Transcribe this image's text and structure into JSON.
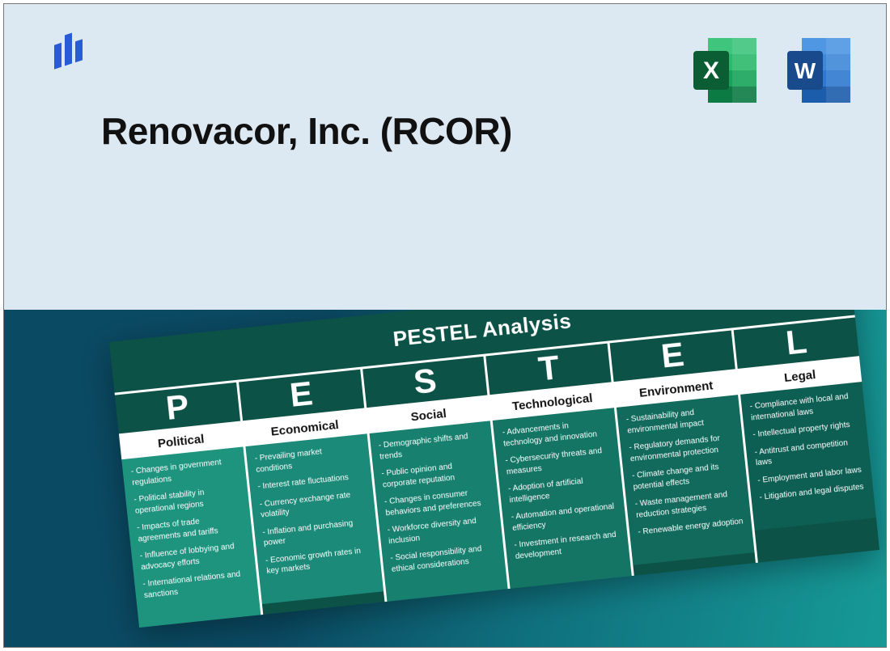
{
  "title": "Renovacor, Inc. (RCOR)",
  "colors": {
    "top_bg": "#dde9f2",
    "bottom_gradient_from": "#0a4a63",
    "bottom_gradient_to": "#169a97",
    "card_bg": "#0c5247",
    "card_text": "#ffffff",
    "label_bg": "#ffffff",
    "label_text": "#111111"
  },
  "logo": {
    "bars": [
      "#2a5bd7",
      "#2a5bd7",
      "#2a5bd7"
    ]
  },
  "app_icons": [
    {
      "name": "excel",
      "letter": "X",
      "dark": "#0b7a43",
      "mid": "#17a35a",
      "light": "#3fc57c",
      "badge": "#0b5e34"
    },
    {
      "name": "word",
      "letter": "W",
      "dark": "#1b5cab",
      "mid": "#2e79cf",
      "light": "#4f97e3",
      "badge": "#184a8c"
    }
  ],
  "card": {
    "title": "PESTEL Analysis",
    "columns": [
      {
        "letter": "P",
        "label": "Political",
        "bg": "#1e947f",
        "items": [
          "- Changes in government regulations",
          "- Political stability in operational regions",
          "- Impacts of trade agreements and tariffs",
          "- Influence of lobbying and advocacy efforts",
          "- International relations and sanctions"
        ]
      },
      {
        "letter": "E",
        "label": "Economical",
        "bg": "#1b8a78",
        "items": [
          "- Prevailing market conditions",
          "- Interest rate fluctuations",
          "- Currency exchange rate volatility",
          "- Inflation and purchasing power",
          "- Economic growth rates in key markets"
        ]
      },
      {
        "letter": "S",
        "label": "Social",
        "bg": "#17806f",
        "items": [
          "- Demographic shifts and trends",
          "- Public opinion and corporate reputation",
          "- Changes in consumer behaviors and preferences",
          "- Workforce diversity and inclusion",
          "- Social responsibility and ethical considerations"
        ]
      },
      {
        "letter": "T",
        "label": "Technological",
        "bg": "#147565",
        "items": [
          "- Advancements in technology and innovation",
          "- Cybersecurity threats and measures",
          "- Adoption of artificial intelligence",
          "- Automation and operational efficiency",
          "- Investment in research and development"
        ]
      },
      {
        "letter": "E",
        "label": "Environment",
        "bg": "#116a5c",
        "items": [
          "- Sustainability and environmental impact",
          "- Regulatory demands for environmental protection",
          "- Climate change and its potential effects",
          "- Waste management and reduction strategies",
          "- Renewable energy adoption"
        ]
      },
      {
        "letter": "L",
        "label": "Legal",
        "bg": "#0e5f53",
        "items": [
          "- Compliance with local and international laws",
          "- Intellectual property rights",
          "- Antitrust and competition laws",
          "- Employment and labor laws",
          "- Litigation and legal disputes"
        ]
      }
    ]
  }
}
